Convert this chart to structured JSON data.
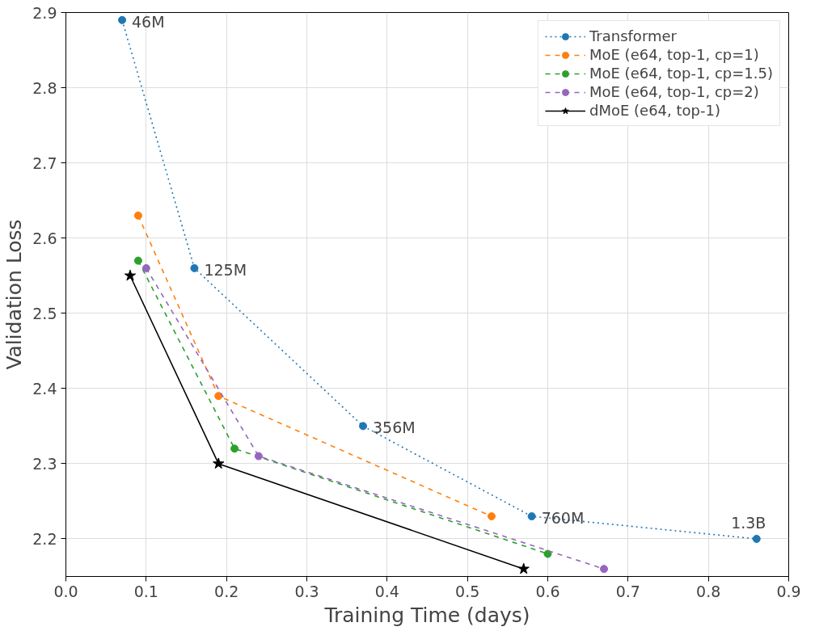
{
  "chart_data": {
    "type": "line",
    "xlabel": "Training Time (days)",
    "ylabel": "Validation Loss",
    "xlim": [
      0,
      0.9
    ],
    "ylim": [
      2.15,
      2.9
    ],
    "xticks": [
      {
        "value": 0,
        "label": "0.0"
      },
      0.1,
      0.2,
      0.3,
      0.4,
      0.5,
      0.6,
      0.7,
      0.8,
      0.9
    ],
    "yticks": [
      2.2,
      2.3,
      2.4,
      2.5,
      2.6,
      2.7,
      2.8,
      2.9
    ],
    "grid": true,
    "legend": "top right",
    "series": [
      {
        "name": "Transformer",
        "color": "#1f77b4",
        "marker": "circle",
        "line_style": "dotted",
        "x": [
          0.07,
          0.16,
          0.37,
          0.58,
          0.86
        ],
        "values": [
          2.89,
          2.56,
          2.35,
          2.23,
          2.2
        ]
      },
      {
        "name": "MoE (e64, top-1, cp=1)",
        "color": "#ff7f0e",
        "marker": "circle",
        "line_style": "dashed",
        "x": [
          0.09,
          0.19,
          0.53
        ],
        "values": [
          2.63,
          2.39,
          2.23
        ]
      },
      {
        "name": "MoE (e64, top-1, cp=1.5)",
        "color": "#2ca02c",
        "marker": "circle",
        "line_style": "dashed",
        "x": [
          0.09,
          0.21,
          0.6
        ],
        "values": [
          2.57,
          2.32,
          2.18
        ]
      },
      {
        "name": "MoE (e64, top-1, cp=2)",
        "color": "#9467bd",
        "marker": "circle",
        "line_style": "dashed",
        "x": [
          0.1,
          0.24,
          0.67
        ],
        "values": [
          2.56,
          2.31,
          2.16
        ]
      },
      {
        "name": "dMoE (e64, top-1)",
        "color": "#000000",
        "marker": "star",
        "line_style": "solid",
        "x": [
          0.08,
          0.19,
          0.57
        ],
        "values": [
          2.55,
          2.3,
          2.16
        ]
      }
    ],
    "annotations": [
      {
        "text": "46M",
        "x": 0.07,
        "y": 2.89
      },
      {
        "text": "125M",
        "x": 0.16,
        "y": 2.56
      },
      {
        "text": "356M",
        "x": 0.37,
        "y": 2.35
      },
      {
        "text": "760M",
        "x": 0.58,
        "y": 2.23
      },
      {
        "text": "1.3B",
        "x": 0.86,
        "y": 2.2
      }
    ]
  }
}
